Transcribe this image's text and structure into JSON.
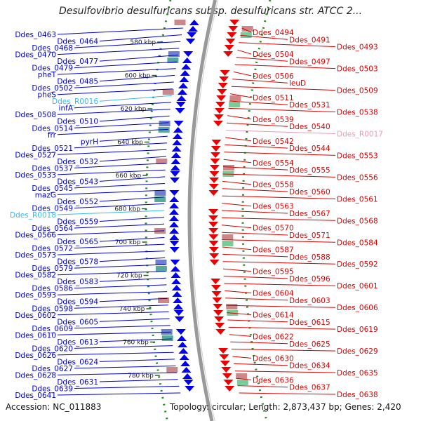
{
  "title": "Desulfovibrio desulfuricans subsp. desulfuricans str. ATCC 2...",
  "footer": {
    "accession": "Accession: NC_011883",
    "topology": "Topology: circular; Length: 2,873,437 bp; Genes: 2,420"
  },
  "colors": {
    "forward_label": "#0000cc",
    "reverse_label": "#dd0000",
    "rna_forward": "#33bbee",
    "rna_reverse": "#ee99bb",
    "forward_arrow": "#0000ee",
    "reverse_arrow": "#ee0000",
    "backbone": "#999999",
    "dotted_ring": "#228822"
  },
  "kbp_ticks": [
    "580 kbp",
    "600 kbp",
    "620 kbp",
    "640 kbp",
    "660 kbp",
    "680 kbp",
    "700 kbp",
    "720 kbp",
    "740 kbp",
    "760 kbp",
    "780 kbp"
  ],
  "left_labels": [
    {
      "text": "Ddes_0463",
      "kind": "gene"
    },
    {
      "text": "Ddes_0464",
      "kind": "gene"
    },
    {
      "text": "Ddes_0468",
      "kind": "gene"
    },
    {
      "text": "Ddes_0470",
      "kind": "gene"
    },
    {
      "text": "Ddes_0477",
      "kind": "gene"
    },
    {
      "text": "Ddes_0479",
      "kind": "gene"
    },
    {
      "text": "pheT",
      "kind": "gene"
    },
    {
      "text": "Ddes_0485",
      "kind": "gene"
    },
    {
      "text": "Ddes_0502",
      "kind": "gene"
    },
    {
      "text": "pheS",
      "kind": "gene"
    },
    {
      "text": "Ddes_R0016",
      "kind": "rna"
    },
    {
      "text": "infA",
      "kind": "gene"
    },
    {
      "text": "Ddes_0508",
      "kind": "gene"
    },
    {
      "text": "Ddes_0510",
      "kind": "gene"
    },
    {
      "text": "Ddes_0514",
      "kind": "gene"
    },
    {
      "text": "frr",
      "kind": "gene"
    },
    {
      "text": "pyrH",
      "kind": "gene"
    },
    {
      "text": "Ddes_0521",
      "kind": "gene"
    },
    {
      "text": "Ddes_0527",
      "kind": "gene"
    },
    {
      "text": "Ddes_0532",
      "kind": "gene"
    },
    {
      "text": "Ddes_0537",
      "kind": "gene"
    },
    {
      "text": "Ddes_0533",
      "kind": "gene"
    },
    {
      "text": "Ddes_0543",
      "kind": "gene"
    },
    {
      "text": "Ddes_0545",
      "kind": "gene"
    },
    {
      "text": "mazG",
      "kind": "gene"
    },
    {
      "text": "Ddes_0552",
      "kind": "gene"
    },
    {
      "text": "Ddes_0549",
      "kind": "gene"
    },
    {
      "text": "Ddes_R0018",
      "kind": "rna"
    },
    {
      "text": "Ddes_0559",
      "kind": "gene"
    },
    {
      "text": "Ddes_0564",
      "kind": "gene"
    },
    {
      "text": "Ddes_0566",
      "kind": "gene"
    },
    {
      "text": "Ddes_0565",
      "kind": "gene"
    },
    {
      "text": "Ddes_0572",
      "kind": "gene"
    },
    {
      "text": "Ddes_0573",
      "kind": "gene"
    },
    {
      "text": "Ddes_0578",
      "kind": "gene"
    },
    {
      "text": "Ddes_0579",
      "kind": "gene"
    },
    {
      "text": "Ddes_0582",
      "kind": "gene"
    },
    {
      "text": "Ddes_0583",
      "kind": "gene"
    },
    {
      "text": "Ddes_0586",
      "kind": "gene"
    },
    {
      "text": "Ddes_0593",
      "kind": "gene"
    },
    {
      "text": "Ddes_0594",
      "kind": "gene"
    },
    {
      "text": "Ddes_0598",
      "kind": "gene"
    },
    {
      "text": "Ddes_0602",
      "kind": "gene"
    },
    {
      "text": "Ddes_0605",
      "kind": "gene"
    },
    {
      "text": "Ddes_0609",
      "kind": "gene"
    },
    {
      "text": "Ddes_0610",
      "kind": "gene"
    },
    {
      "text": "Ddes_0613",
      "kind": "gene"
    },
    {
      "text": "Ddes_0620",
      "kind": "gene"
    },
    {
      "text": "Ddes_0626",
      "kind": "gene"
    },
    {
      "text": "Ddes_0624",
      "kind": "gene"
    },
    {
      "text": "Ddes_0627",
      "kind": "gene"
    },
    {
      "text": "Ddes_0628",
      "kind": "gene"
    },
    {
      "text": "Ddes_0631",
      "kind": "gene"
    },
    {
      "text": "Ddes_0639",
      "kind": "gene"
    },
    {
      "text": "Ddes_0641",
      "kind": "gene"
    }
  ],
  "right_labels": [
    {
      "text": "Ddes_0494",
      "kind": "gene"
    },
    {
      "text": "Ddes_0491",
      "kind": "gene"
    },
    {
      "text": "Ddes_0493",
      "kind": "gene"
    },
    {
      "text": "Ddes_0504",
      "kind": "gene"
    },
    {
      "text": "Ddes_0497",
      "kind": "gene"
    },
    {
      "text": "Ddes_0503",
      "kind": "gene"
    },
    {
      "text": "Ddes_0506",
      "kind": "gene"
    },
    {
      "text": "leuD",
      "kind": "gene"
    },
    {
      "text": "Ddes_0509",
      "kind": "gene"
    },
    {
      "text": "Ddes_0511",
      "kind": "gene"
    },
    {
      "text": "Ddes_0531",
      "kind": "gene"
    },
    {
      "text": "Ddes_0538",
      "kind": "gene"
    },
    {
      "text": "Ddes_0539",
      "kind": "gene"
    },
    {
      "text": "Ddes_0540",
      "kind": "gene"
    },
    {
      "text": "Ddes_R0017",
      "kind": "rna"
    },
    {
      "text": "Ddes_0542",
      "kind": "gene"
    },
    {
      "text": "Ddes_0544",
      "kind": "gene"
    },
    {
      "text": "Ddes_0553",
      "kind": "gene"
    },
    {
      "text": "Ddes_0554",
      "kind": "gene"
    },
    {
      "text": "Ddes_0555",
      "kind": "gene"
    },
    {
      "text": "Ddes_0556",
      "kind": "gene"
    },
    {
      "text": "Ddes_0558",
      "kind": "gene"
    },
    {
      "text": "Ddes_0560",
      "kind": "gene"
    },
    {
      "text": "Ddes_0561",
      "kind": "gene"
    },
    {
      "text": "Ddes_0563",
      "kind": "gene"
    },
    {
      "text": "Ddes_0567",
      "kind": "gene"
    },
    {
      "text": "Ddes_0568",
      "kind": "gene"
    },
    {
      "text": "Ddes_0570",
      "kind": "gene"
    },
    {
      "text": "Ddes_0571",
      "kind": "gene"
    },
    {
      "text": "Ddes_0584",
      "kind": "gene"
    },
    {
      "text": "Ddes_0587",
      "kind": "gene"
    },
    {
      "text": "Ddes_0588",
      "kind": "gene"
    },
    {
      "text": "Ddes_0592",
      "kind": "gene"
    },
    {
      "text": "Ddes_0595",
      "kind": "gene"
    },
    {
      "text": "Ddes_0596",
      "kind": "gene"
    },
    {
      "text": "Ddes_0601",
      "kind": "gene"
    },
    {
      "text": "Ddes_0604",
      "kind": "gene"
    },
    {
      "text": "Ddes_0603",
      "kind": "gene"
    },
    {
      "text": "Ddes_0606",
      "kind": "gene"
    },
    {
      "text": "Ddes_0614",
      "kind": "gene"
    },
    {
      "text": "Ddes_0615",
      "kind": "gene"
    },
    {
      "text": "Ddes_0619",
      "kind": "gene"
    },
    {
      "text": "Ddes_0622",
      "kind": "gene"
    },
    {
      "text": "Ddes_0625",
      "kind": "gene"
    },
    {
      "text": "Ddes_0629",
      "kind": "gene"
    },
    {
      "text": "Ddes_0630",
      "kind": "gene"
    },
    {
      "text": "Ddes_0634",
      "kind": "gene"
    },
    {
      "text": "Ddes_0635",
      "kind": "gene"
    },
    {
      "text": "Ddes_0636",
      "kind": "gene"
    },
    {
      "text": "Ddes_0637",
      "kind": "gene"
    },
    {
      "text": "Ddes_0638",
      "kind": "gene"
    }
  ]
}
